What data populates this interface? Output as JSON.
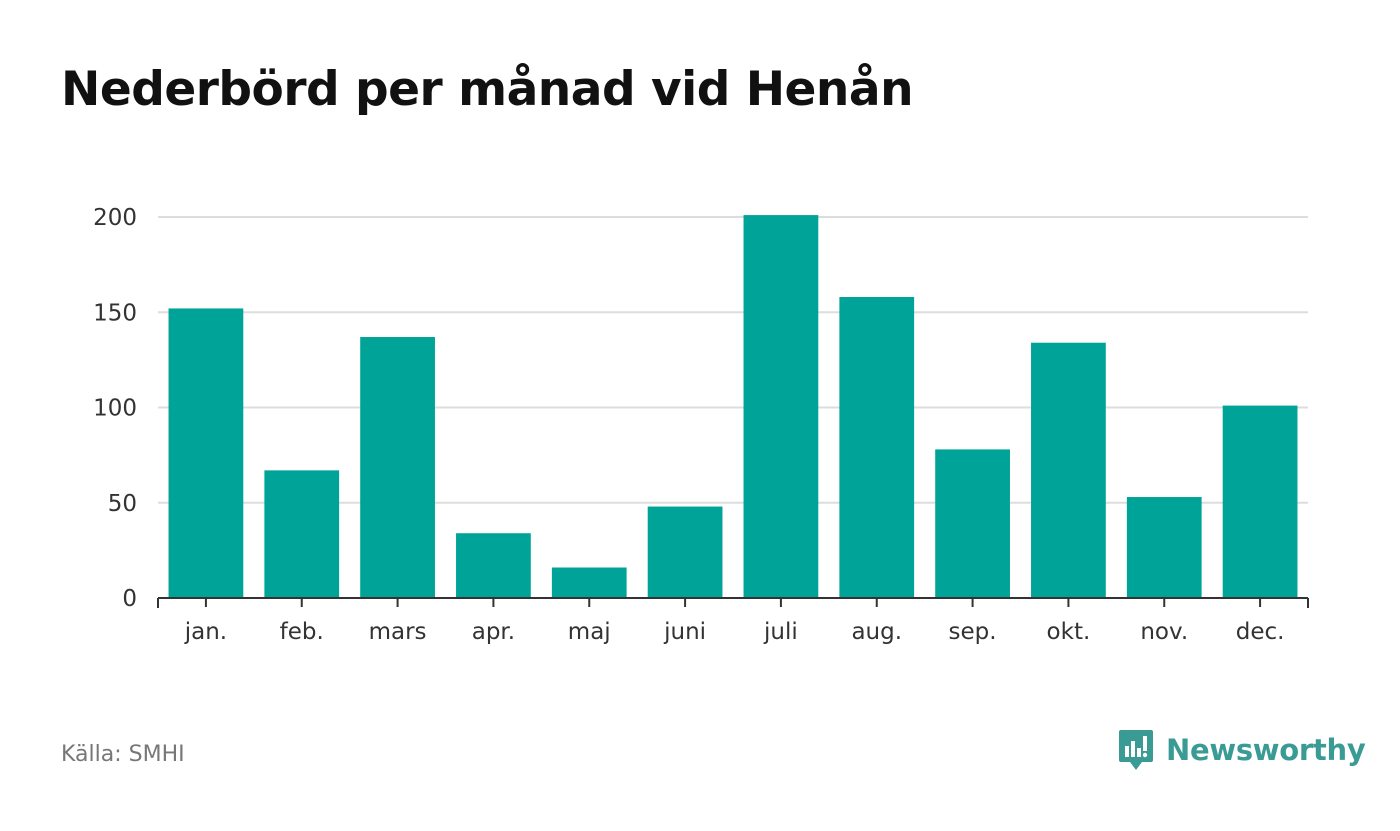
{
  "title": "Nederbörd per månad vid Henån",
  "source": "Källa: SMHI",
  "brand": {
    "name": "Newsworthy",
    "icon": "newsworthy-logo-icon"
  },
  "colors": {
    "bar": "#00a397",
    "grid": "#dddddd",
    "axis": "#333333",
    "brand": "#3a9b94"
  },
  "chart_data": {
    "type": "bar",
    "title": "Nederbörd per månad vid Henån",
    "xlabel": "",
    "ylabel": "",
    "categories": [
      "jan.",
      "feb.",
      "mars",
      "apr.",
      "maj",
      "juni",
      "juli",
      "aug.",
      "sep.",
      "okt.",
      "nov.",
      "dec."
    ],
    "values": [
      152,
      67,
      137,
      34,
      16,
      48,
      201,
      158,
      78,
      134,
      53,
      101
    ],
    "ylim": [
      0,
      200
    ],
    "yticks": [
      0,
      50,
      100,
      150,
      200
    ],
    "grid": true,
    "legend": "none"
  }
}
